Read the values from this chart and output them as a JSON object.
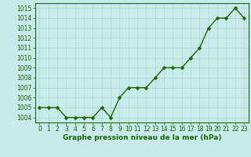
{
  "hours": [
    0,
    1,
    2,
    3,
    4,
    5,
    6,
    7,
    8,
    9,
    10,
    11,
    12,
    13,
    14,
    15,
    16,
    17,
    18,
    19,
    20,
    21,
    22,
    23
  ],
  "pressure": [
    1005,
    1005,
    1005,
    1004,
    1004,
    1004,
    1004,
    1005,
    1004,
    1006,
    1007,
    1007,
    1007,
    1008,
    1009,
    1009,
    1009,
    1010,
    1011,
    1013,
    1014,
    1014,
    1015,
    1014
  ],
  "ylim": [
    1003.5,
    1015.5
  ],
  "yticks": [
    1004,
    1005,
    1006,
    1007,
    1008,
    1009,
    1010,
    1011,
    1012,
    1013,
    1014,
    1015
  ],
  "xticks": [
    0,
    1,
    2,
    3,
    4,
    5,
    6,
    7,
    8,
    9,
    10,
    11,
    12,
    13,
    14,
    15,
    16,
    17,
    18,
    19,
    20,
    21,
    22,
    23
  ],
  "line_color": "#1a6600",
  "marker_color": "#1a6600",
  "bg_color": "#c8eaea",
  "grid_color": "#b0d8d8",
  "xlabel": "Graphe pression niveau de la mer (hPa)",
  "xlabel_color": "#1a6600",
  "tick_color": "#1a6600",
  "label_fontsize": 6.5,
  "tick_fontsize": 5.5,
  "line_width": 1.0,
  "marker_size": 2.5
}
